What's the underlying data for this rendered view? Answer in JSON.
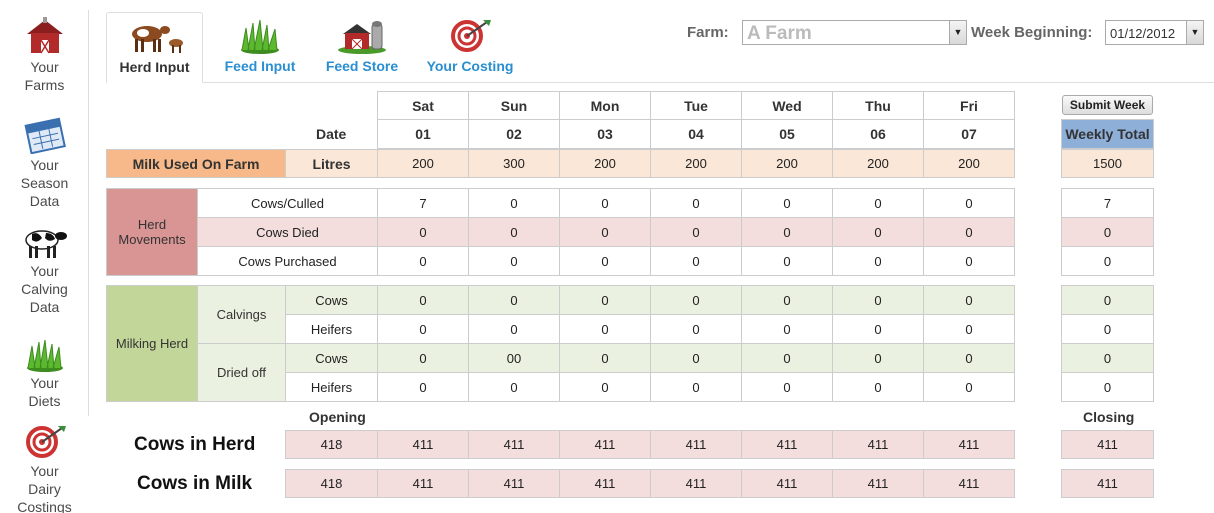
{
  "sidebar": {
    "items": [
      {
        "label": "Your\nFarms",
        "icon": "barn-icon"
      },
      {
        "label": "Your\nSeason\nData",
        "icon": "calendar-icon"
      },
      {
        "label": "Your\nCalving\nData",
        "icon": "cow-icon"
      },
      {
        "label": "Your\nDiets",
        "icon": "grass-icon"
      },
      {
        "label": "Your\nDairy\nCostings",
        "icon": "target-icon"
      }
    ]
  },
  "tabs": [
    {
      "label": "Herd Input",
      "icon": "cow-calf-icon"
    },
    {
      "label": "Feed Input",
      "icon": "grass-icon"
    },
    {
      "label": "Feed Store",
      "icon": "barn-silo-icon"
    },
    {
      "label": "Your Costing",
      "icon": "target-icon"
    }
  ],
  "filters": {
    "farm_label": "Farm:",
    "farm_value": "A Farm",
    "week_label": "Week Beginning:",
    "week_value": "01/12/2012"
  },
  "submit_label": "Submit Week",
  "weekly_total_label": "Weekly Total",
  "date_label": "Date",
  "days": [
    "Sat",
    "Sun",
    "Mon",
    "Tue",
    "Wed",
    "Thu",
    "Fri"
  ],
  "dates": [
    "01",
    "02",
    "03",
    "04",
    "05",
    "06",
    "07"
  ],
  "milk": {
    "section": "Milk Used On Farm",
    "unit": "Litres",
    "values": [
      "200",
      "300",
      "200",
      "200",
      "200",
      "200",
      "200"
    ],
    "total": "1500"
  },
  "herd_movements": {
    "section": "Herd\nMovements",
    "rows": [
      {
        "label": "Cows/Culled",
        "values": [
          "7",
          "0",
          "0",
          "0",
          "0",
          "0",
          "0"
        ],
        "total": "7"
      },
      {
        "label": "Cows Died",
        "values": [
          "0",
          "0",
          "0",
          "0",
          "0",
          "0",
          "0"
        ],
        "total": "0"
      },
      {
        "label": "Cows Purchased",
        "values": [
          "0",
          "0",
          "0",
          "0",
          "0",
          "0",
          "0"
        ],
        "total": "0"
      }
    ]
  },
  "milking_herd": {
    "section": "Milking Herd",
    "groups": [
      {
        "label": "Calvings",
        "rows": [
          {
            "label": "Cows",
            "values": [
              "0",
              "0",
              "0",
              "0",
              "0",
              "0",
              "0"
            ],
            "total": "0"
          },
          {
            "label": "Heifers",
            "values": [
              "0",
              "0",
              "0",
              "0",
              "0",
              "0",
              "0"
            ],
            "total": "0"
          }
        ]
      },
      {
        "label": "Dried off",
        "rows": [
          {
            "label": "Cows",
            "values": [
              "0",
              "00",
              "0",
              "0",
              "0",
              "0",
              "0"
            ],
            "total": "0"
          },
          {
            "label": "Heifers",
            "values": [
              "0",
              "0",
              "0",
              "0",
              "0",
              "0",
              "0"
            ],
            "total": "0"
          }
        ]
      }
    ]
  },
  "opening_label": "Opening",
  "closing_label": "Closing",
  "cows_in_herd": {
    "label": "Cows in Herd",
    "values": [
      "418",
      "411",
      "411",
      "411",
      "411",
      "411",
      "411",
      "411"
    ],
    "closing": "411"
  },
  "cows_in_milk": {
    "label": "Cows in Milk",
    "values": [
      "418",
      "411",
      "411",
      "411",
      "411",
      "411",
      "411",
      "411"
    ],
    "closing": "411"
  }
}
